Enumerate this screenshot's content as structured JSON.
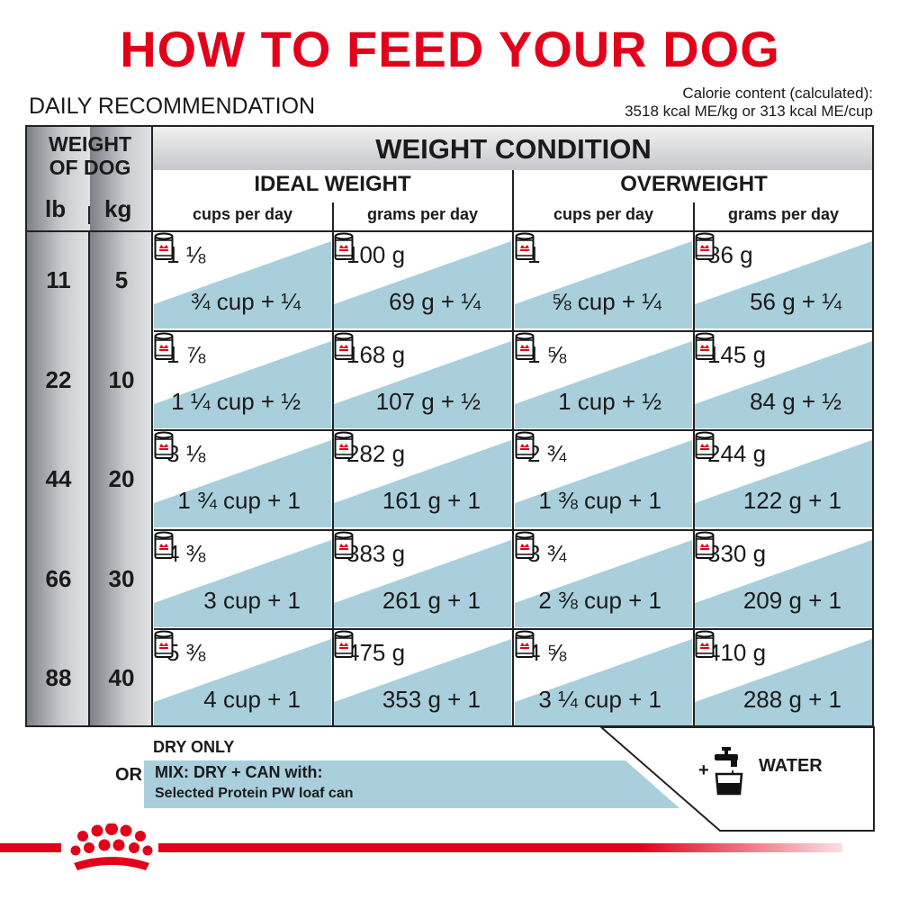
{
  "title": "HOW TO FEED YOUR DOG",
  "subtitle": "DAILY RECOMMENDATION",
  "calorie": {
    "line1": "Calorie content (calculated):",
    "line2": "3518 kcal ME/kg or 313 kcal ME/cup"
  },
  "header": {
    "weight_of_dog_1": "WEIGHT",
    "weight_of_dog_2": "OF DOG",
    "lb": "lb",
    "kg": "kg",
    "condition": "WEIGHT CONDITION",
    "ideal": "IDEAL WEIGHT",
    "overweight": "OVERWEIGHT",
    "cols": [
      "cups per day",
      "grams per day",
      "cups per day",
      "grams per day"
    ]
  },
  "rows": [
    {
      "lb": "11",
      "kg": "5",
      "cells": [
        {
          "top": "1 ⅛",
          "bottom": "¾ cup + ¼"
        },
        {
          "top": "100 g",
          "bottom": "69 g + ¼"
        },
        {
          "top": "1",
          "bottom": "⅝ cup + ¼"
        },
        {
          "top": "86 g",
          "bottom": "56 g + ¼"
        }
      ]
    },
    {
      "lb": "22",
      "kg": "10",
      "cells": [
        {
          "top": "1 ⅞",
          "bottom": "1 ¼ cup + ½"
        },
        {
          "top": "168 g",
          "bottom": "107 g + ½"
        },
        {
          "top": "1 ⅝",
          "bottom": "1 cup + ½"
        },
        {
          "top": "145 g",
          "bottom": "84 g + ½"
        }
      ]
    },
    {
      "lb": "44",
      "kg": "20",
      "cells": [
        {
          "top": "3 ⅛",
          "bottom": "1 ¾ cup + 1"
        },
        {
          "top": "282 g",
          "bottom": "161 g + 1"
        },
        {
          "top": "2 ¾",
          "bottom": "1 ⅜ cup + 1"
        },
        {
          "top": "244 g",
          "bottom": "122 g + 1"
        }
      ]
    },
    {
      "lb": "66",
      "kg": "30",
      "cells": [
        {
          "top": "4 ⅜",
          "bottom": "3 cup + 1"
        },
        {
          "top": "383 g",
          "bottom": "261 g + 1"
        },
        {
          "top": "3 ¾",
          "bottom": "2 ⅜ cup + 1"
        },
        {
          "top": "330 g",
          "bottom": "209 g + 1"
        }
      ]
    },
    {
      "lb": "88",
      "kg": "40",
      "cells": [
        {
          "top": "5 ⅜",
          "bottom": "4 cup + 1"
        },
        {
          "top": "475 g",
          "bottom": "353 g + 1"
        },
        {
          "top": "4 ⅝",
          "bottom": "3 ¼ cup + 1"
        },
        {
          "top": "410 g",
          "bottom": "288 g + 1"
        }
      ]
    }
  ],
  "legend": {
    "dry_only": "DRY ONLY",
    "or": "OR",
    "mix": "MIX: DRY + CAN with:",
    "mix_product": "Selected Protein PW loaf can",
    "plus": "+",
    "water": "WATER"
  },
  "colors": {
    "title_red": "#e2001a",
    "cell_blue": "#a9cfdc",
    "line": "#222222"
  },
  "icons": [
    "can-icon",
    "water-tap-icon",
    "royal-canin-crown-icon"
  ]
}
